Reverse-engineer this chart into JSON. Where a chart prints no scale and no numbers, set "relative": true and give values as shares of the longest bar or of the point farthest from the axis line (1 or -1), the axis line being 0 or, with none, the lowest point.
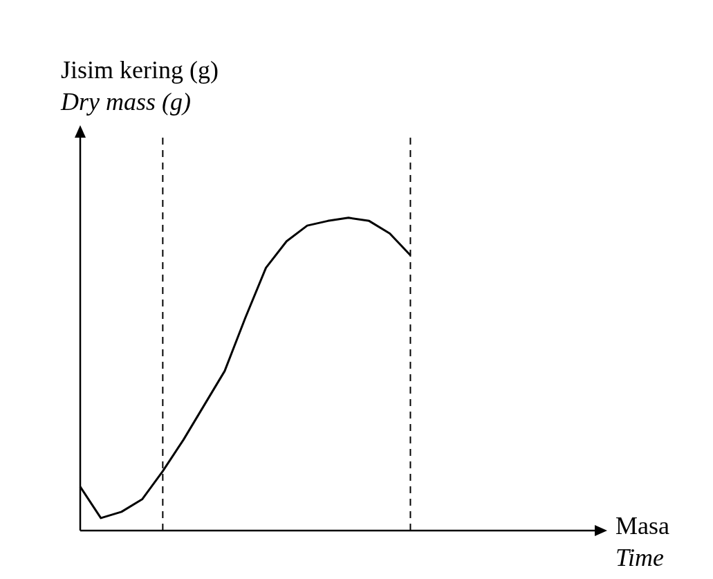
{
  "chart_data": {
    "type": "line",
    "ylabel": "Jisim kering (g)\nDry mass (g)",
    "xlabel": "Masa\nTime",
    "relative": true,
    "categories": [
      null,
      null,
      null,
      null,
      null,
      null,
      null,
      null,
      null,
      null,
      null,
      null,
      null,
      null,
      null,
      null,
      null,
      null,
      null,
      null,
      null,
      null,
      null,
      null,
      null,
      null
    ],
    "series": [
      {
        "color": "#000000",
        "values": [
          0.14,
          0.04,
          0.06,
          0.1,
          0.19,
          0.29,
          0.4,
          0.51,
          0.68,
          0.84,
          0.925,
          0.975,
          0.99,
          1,
          0.99,
          0.95,
          0.88,
          null,
          null,
          null,
          null,
          null,
          null,
          null,
          null,
          null
        ]
      }
    ]
  }
}
